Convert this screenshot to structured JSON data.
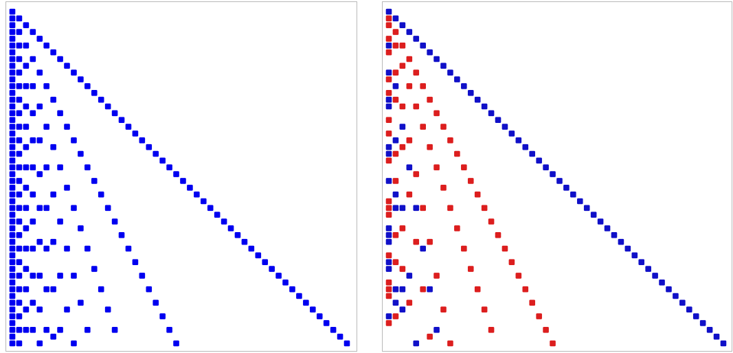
{
  "panels": [
    {
      "color": "#0000f0",
      "rows": [
        [
          1
        ],
        [
          1,
          2
        ],
        [
          1,
          3
        ],
        [
          1,
          2,
          4
        ],
        [
          1,
          5
        ],
        [
          1,
          2,
          3,
          6
        ],
        [
          1,
          7
        ],
        [
          1,
          2,
          4,
          8
        ],
        [
          1,
          3,
          9
        ],
        [
          1,
          2,
          5,
          10
        ],
        [
          1,
          11
        ],
        [
          1,
          2,
          3,
          4,
          6,
          12
        ],
        [
          1,
          13
        ],
        [
          1,
          2,
          7,
          14
        ],
        [
          1,
          3,
          5,
          15
        ],
        [
          1,
          2,
          4,
          8,
          16
        ],
        [
          1,
          17
        ],
        [
          1,
          2,
          3,
          6,
          9,
          18
        ],
        [
          1,
          19
        ],
        [
          1,
          2,
          4,
          5,
          10,
          20
        ],
        [
          1,
          3,
          7,
          21
        ],
        [
          1,
          2,
          11,
          22
        ],
        [
          1,
          23
        ],
        [
          1,
          2,
          3,
          4,
          6,
          8,
          12,
          24
        ],
        [
          1,
          5,
          25
        ],
        [
          1,
          2,
          13,
          26
        ],
        [
          1,
          3,
          9,
          27
        ],
        [
          1,
          2,
          4,
          7,
          14,
          28
        ],
        [
          1,
          29
        ],
        [
          1,
          2,
          3,
          5,
          6,
          10,
          15,
          30
        ],
        [
          1,
          31
        ],
        [
          1,
          2,
          4,
          8,
          16,
          32
        ],
        [
          1,
          3,
          11,
          33
        ],
        [
          1,
          2,
          17,
          34
        ],
        [
          1,
          5,
          7,
          35
        ],
        [
          1,
          2,
          3,
          4,
          6,
          9,
          12,
          18,
          36
        ],
        [
          1,
          37
        ],
        [
          1,
          2,
          19,
          38
        ],
        [
          1,
          3,
          13,
          39
        ],
        [
          1,
          2,
          4,
          5,
          8,
          10,
          20,
          40
        ],
        [
          1,
          41
        ],
        [
          1,
          2,
          3,
          6,
          7,
          14,
          21,
          42
        ],
        [
          1,
          43
        ],
        [
          1,
          2,
          4,
          11,
          22,
          44
        ],
        [
          1,
          3,
          5,
          9,
          15,
          45
        ],
        [
          1,
          2,
          23,
          46
        ],
        [
          1,
          47
        ],
        [
          1,
          2,
          3,
          4,
          6,
          8,
          12,
          16,
          24,
          48
        ],
        [
          1,
          7,
          49
        ],
        [
          1,
          2,
          5,
          10,
          25,
          50
        ]
      ]
    },
    {
      "positive_color": "#1010c8",
      "negative_color": "#dc1e1e",
      "rows": [
        [
          1
        ],
        [
          1,
          2
        ],
        [
          1,
          3
        ],
        [
          2,
          4
        ],
        [
          1,
          5
        ],
        [
          1,
          2,
          3,
          6
        ],
        [
          1,
          7
        ],
        [
          4,
          8
        ],
        [
          3,
          9
        ],
        [
          1,
          2,
          5,
          10
        ],
        [
          1,
          11
        ],
        [
          2,
          4,
          6,
          12
        ],
        [
          1,
          13
        ],
        [
          1,
          2,
          7,
          14
        ],
        [
          1,
          3,
          5,
          15
        ],
        [
          8,
          16
        ],
        [
          1,
          17
        ],
        [
          3,
          6,
          9,
          18
        ],
        [
          1,
          19
        ],
        [
          2,
          4,
          10,
          20
        ],
        [
          1,
          3,
          7,
          21
        ],
        [
          1,
          2,
          11,
          22
        ],
        [
          1,
          23
        ],
        [
          4,
          8,
          12,
          24
        ],
        [
          5,
          25
        ],
        [
          1,
          2,
          13,
          26
        ],
        [
          9,
          27
        ],
        [
          2,
          4,
          14,
          28
        ],
        [
          1,
          29
        ],
        [
          1,
          2,
          3,
          5,
          6,
          10,
          15,
          30
        ],
        [
          1,
          31
        ],
        [
          16,
          32
        ],
        [
          1,
          3,
          11,
          33
        ],
        [
          1,
          2,
          17,
          34
        ],
        [
          1,
          5,
          7,
          35
        ],
        [
          6,
          12,
          18,
          36
        ],
        [
          1,
          37
        ],
        [
          1,
          2,
          19,
          38
        ],
        [
          1,
          3,
          13,
          39
        ],
        [
          4,
          8,
          20,
          40
        ],
        [
          1,
          41
        ],
        [
          1,
          2,
          3,
          6,
          7,
          14,
          21,
          42
        ],
        [
          1,
          43
        ],
        [
          2,
          4,
          22,
          44
        ],
        [
          3,
          9,
          15,
          45
        ],
        [
          1,
          2,
          23,
          46
        ],
        [
          1,
          47
        ],
        [
          8,
          16,
          24,
          48
        ],
        [
          7,
          49
        ],
        [
          5,
          10,
          25,
          50
        ]
      ],
      "signs": [
        [
          1
        ],
        [
          -1,
          1
        ],
        [
          -1,
          1
        ],
        [
          -1,
          1
        ],
        [
          -1,
          1
        ],
        [
          1,
          -1,
          -1,
          1
        ],
        [
          -1,
          1
        ],
        [
          -1,
          1
        ],
        [
          -1,
          1
        ],
        [
          1,
          -1,
          -1,
          1
        ],
        [
          -1,
          1
        ],
        [
          1,
          -1,
          -1,
          1
        ],
        [
          -1,
          1
        ],
        [
          1,
          -1,
          -1,
          1
        ],
        [
          1,
          -1,
          -1,
          1
        ],
        [
          -1,
          1
        ],
        [
          -1,
          1
        ],
        [
          1,
          -1,
          -1,
          1
        ],
        [
          -1,
          1
        ],
        [
          1,
          -1,
          -1,
          1
        ],
        [
          1,
          -1,
          -1,
          1
        ],
        [
          1,
          -1,
          -1,
          1
        ],
        [
          -1,
          1
        ],
        [
          1,
          -1,
          -1,
          1
        ],
        [
          -1,
          1
        ],
        [
          1,
          -1,
          -1,
          1
        ],
        [
          -1,
          1
        ],
        [
          1,
          -1,
          -1,
          1
        ],
        [
          -1,
          1
        ],
        [
          -1,
          1,
          1,
          1,
          -1,
          -1,
          -1,
          1
        ],
        [
          -1,
          1
        ],
        [
          -1,
          1
        ],
        [
          1,
          -1,
          -1,
          1
        ],
        [
          1,
          -1,
          -1,
          1
        ],
        [
          1,
          -1,
          -1,
          1
        ],
        [
          1,
          -1,
          -1,
          1
        ],
        [
          -1,
          1
        ],
        [
          1,
          -1,
          -1,
          1
        ],
        [
          1,
          -1,
          -1,
          1
        ],
        [
          1,
          -1,
          -1,
          1
        ],
        [
          -1,
          1
        ],
        [
          -1,
          1,
          1,
          -1,
          1,
          -1,
          -1,
          1
        ],
        [
          -1,
          1
        ],
        [
          1,
          -1,
          -1,
          1
        ],
        [
          1,
          -1,
          -1,
          1
        ],
        [
          1,
          -1,
          -1,
          1
        ],
        [
          -1,
          1
        ],
        [
          1,
          -1,
          -1,
          1
        ],
        [
          -1,
          1
        ],
        [
          1,
          -1,
          -1,
          1
        ]
      ]
    }
  ]
}
